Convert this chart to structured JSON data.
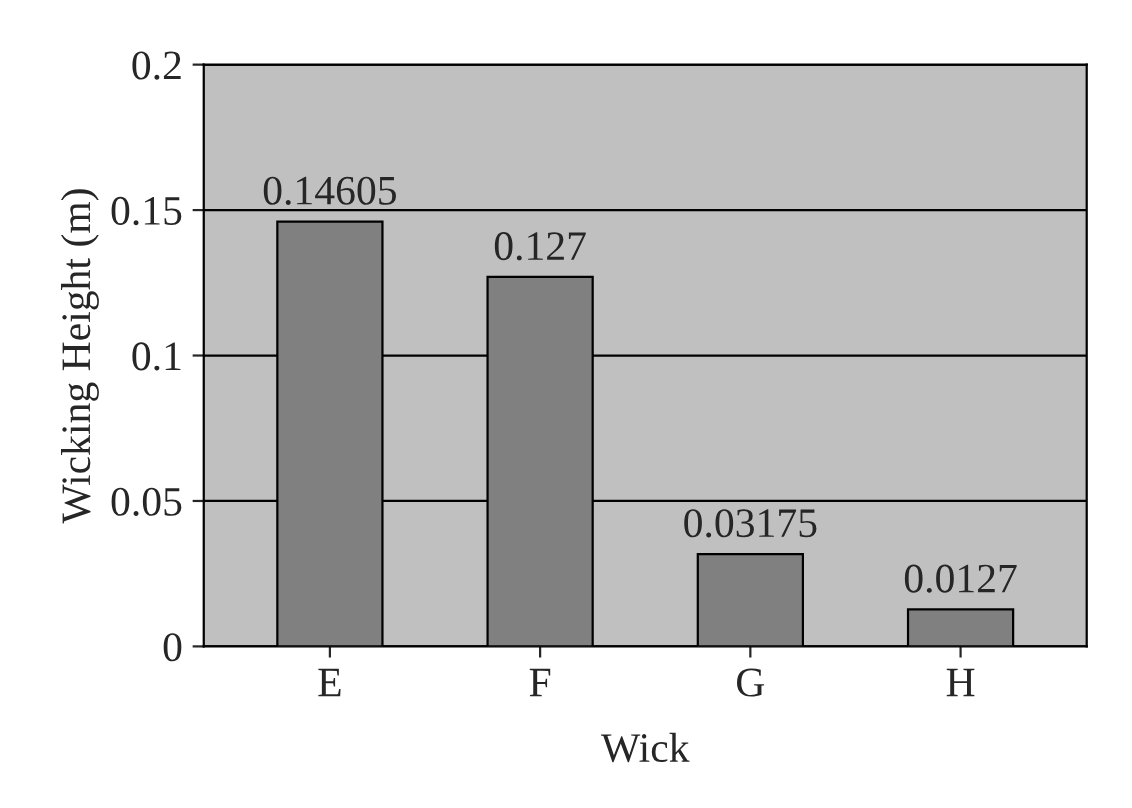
{
  "chart_data": {
    "type": "bar",
    "xlabel": "Wick",
    "ylabel": "Wicking Height (m)",
    "categories": [
      "E",
      "F",
      "G",
      "H"
    ],
    "values": [
      0.14605,
      0.127,
      0.03175,
      0.0127
    ],
    "color": "#808080",
    "ylim": [
      0,
      0.2
    ],
    "yticks": [
      0,
      0.05,
      0.1,
      0.15,
      0.2
    ],
    "grid": "y",
    "data_labels": true
  }
}
